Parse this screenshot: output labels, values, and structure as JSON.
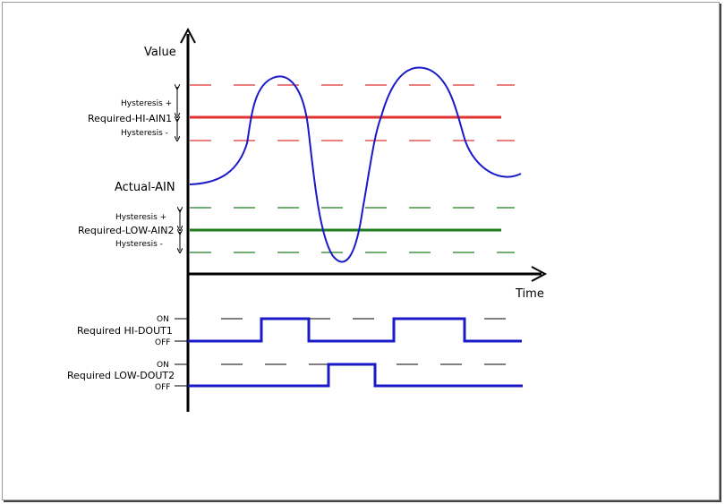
{
  "axes": {
    "y_label": "Value",
    "x_label": "Time"
  },
  "upper_band": {
    "hysteresis_plus": "Hysteresis +",
    "threshold_label": "Required-HI-AIN1",
    "hysteresis_minus": "Hysteresis -",
    "color": "#e03030"
  },
  "signal": {
    "label": "Actual-AIN",
    "color": "#1a1ac8"
  },
  "lower_band": {
    "hysteresis_plus": "Hysteresis +",
    "threshold_label": "Required-LOW-AIN2",
    "hysteresis_minus": "Hysteresis -",
    "color": "#1e7d1e"
  },
  "dout1": {
    "label": "Required HI-DOUT1",
    "on": "ON",
    "off": "OFF"
  },
  "dout2": {
    "label": "Required LOW-DOUT2",
    "on": "ON",
    "off": "OFF"
  }
}
